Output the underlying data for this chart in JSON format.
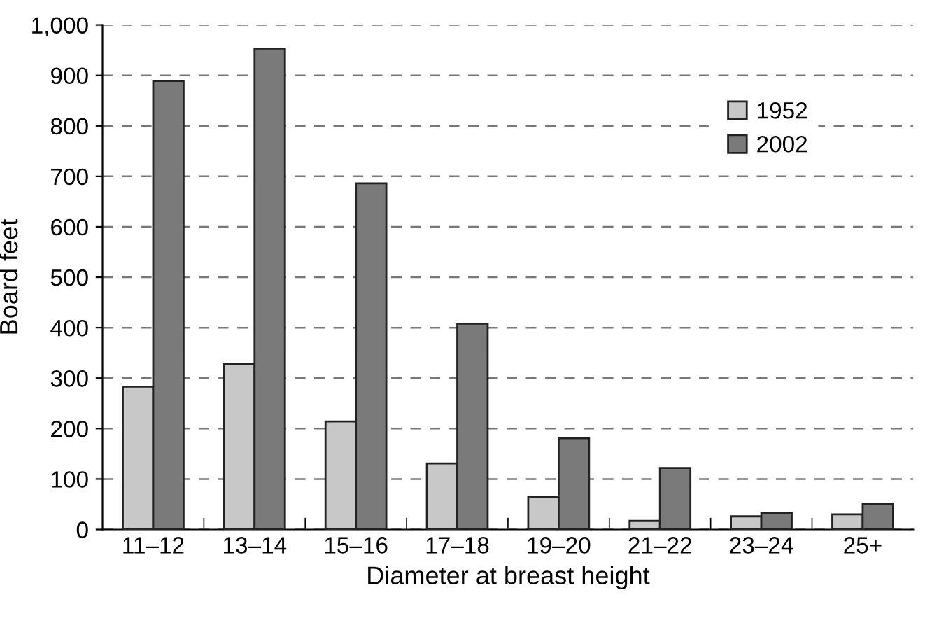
{
  "chart_data": {
    "type": "bar",
    "xlabel": "Diameter at breast height",
    "ylabel": "Board feet",
    "categories": [
      "11–12",
      "13–14",
      "15–16",
      "17–18",
      "19–20",
      "21–22",
      "23–24",
      "25+"
    ],
    "series": [
      {
        "name": "1952",
        "color": "#c8c8c8",
        "values": [
          283,
          328,
          214,
          131,
          64,
          17,
          26,
          30
        ]
      },
      {
        "name": "2002",
        "color": "#7a7a7a",
        "values": [
          889,
          953,
          686,
          408,
          181,
          122,
          33,
          50
        ]
      }
    ],
    "ylim": [
      0,
      1000
    ],
    "yticks": [
      0,
      100,
      200,
      300,
      400,
      500,
      600,
      700,
      800,
      900,
      {
        "value": 1000,
        "label": "1,000"
      }
    ],
    "grid": "y",
    "legend": "top right"
  }
}
